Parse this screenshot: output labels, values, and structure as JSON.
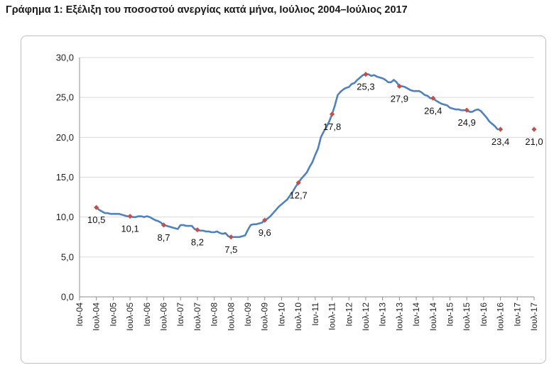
{
  "page": {
    "title": "Γράφημα 1: Εξέλιξη του ποσοστού ανεργίας κατά μήνα, Ιούλιος 2004–Ιούλιος 2017"
  },
  "chart_data": {
    "type": "line",
    "title": "Γράφημα 1: Εξέλιξη του ποσοστού ανεργίας κατά μήνα, Ιούλιος 2004–Ιούλιος 2017",
    "xlabel": "",
    "ylabel": "",
    "ylim": [
      0,
      30
    ],
    "y_ticks": [
      "0,0",
      "5,0",
      "10,0",
      "15,0",
      "20,0",
      "25,0",
      "30,0"
    ],
    "grid": true,
    "legend": "none",
    "colors": {
      "line": "#4f81bd",
      "marker": "#c0504d",
      "grid": "#d9d9d9",
      "axis": "#8c8c8c"
    },
    "x_ticks": [
      "Ιαν-04",
      "Ιουλ-04",
      "Ιαν-05",
      "Ιουλ-05",
      "Ιαν-06",
      "Ιουλ-06",
      "Ιαν-07",
      "Ιουλ-07",
      "Ιαν-08",
      "Ιουλ-08",
      "Ιαν-09",
      "Ιουλ-09",
      "Ιαν-10",
      "Ιουλ-10",
      "Ιαν-11",
      "Ιουλ-11",
      "Ιαν-12",
      "Ιουλ-12",
      "Ιαν-13",
      "Ιουλ-13",
      "Ιαν-14",
      "Ιουλ-14",
      "Ιαν-15",
      "Ιουλ-15",
      "Ιαν-16",
      "Ιουλ-16",
      "Ιαν-17",
      "Ιουλ-17"
    ],
    "series": [
      {
        "values": [
          11.2,
          10.9,
          10.7,
          10.5,
          10.5,
          10.4,
          10.4,
          10.4,
          10.4,
          10.3,
          10.2,
          10.1,
          10.1,
          10.0,
          10.0,
          10.1,
          10.1,
          10.0,
          10.1,
          10.0,
          9.8,
          9.6,
          9.5,
          9.3,
          9.0,
          8.9,
          8.8,
          8.7,
          8.6,
          8.5,
          9.0,
          9.0,
          8.9,
          8.9,
          8.9,
          8.5,
          8.4,
          8.3,
          8.3,
          8.2,
          8.2,
          8.1,
          8.1,
          8.2,
          8.0,
          7.9,
          8.0,
          7.6,
          7.5,
          7.5,
          7.5,
          7.5,
          7.6,
          7.7,
          8.4,
          9.0,
          9.1,
          9.1,
          9.2,
          9.3,
          9.6,
          9.8,
          10.1,
          10.5,
          10.9,
          11.3,
          11.6,
          11.9,
          12.2,
          12.7,
          13.2,
          13.8,
          14.3,
          14.8,
          15.2,
          15.6,
          16.3,
          16.9,
          17.8,
          18.6,
          20.0,
          20.7,
          21.3,
          22.0,
          22.9,
          24.0,
          25.3,
          25.7,
          26.0,
          26.2,
          26.3,
          26.7,
          26.8,
          27.2,
          27.5,
          27.8,
          27.9,
          27.9,
          27.7,
          27.8,
          27.6,
          27.5,
          27.4,
          27.2,
          26.9,
          26.9,
          27.2,
          26.9,
          26.4,
          26.4,
          26.3,
          26.1,
          25.9,
          25.8,
          25.8,
          25.8,
          25.6,
          25.3,
          25.2,
          24.9,
          24.9,
          24.6,
          24.4,
          24.2,
          24.1,
          24.0,
          23.7,
          23.6,
          23.5,
          23.5,
          23.4,
          23.4,
          23.4,
          23.2,
          23.2,
          23.4,
          23.5,
          23.3,
          22.9,
          22.5,
          22.0,
          21.7,
          21.4,
          21.0
        ]
      }
    ],
    "start_index_offset": 6,
    "marker_indices": [
      6,
      18,
      30,
      42,
      54,
      66,
      78,
      90,
      102,
      114,
      126,
      138,
      150
    ],
    "data_labels": [
      {
        "i": 6,
        "text": "10,5",
        "dx": 0,
        "dy": 22
      },
      {
        "i": 18,
        "text": "10,1",
        "dx": 0,
        "dy": 22
      },
      {
        "i": 30,
        "text": "8,7",
        "dx": 0,
        "dy": 22
      },
      {
        "i": 42,
        "text": "8,2",
        "dx": 0,
        "dy": 22
      },
      {
        "i": 54,
        "text": "7,5",
        "dx": 0,
        "dy": 22
      },
      {
        "i": 66,
        "text": "9,6",
        "dx": 0,
        "dy": 22
      },
      {
        "i": 78,
        "text": "12,7",
        "dx": 0,
        "dy": 22
      },
      {
        "i": 90,
        "text": "17,8",
        "dx": 0,
        "dy": 22
      },
      {
        "i": 102,
        "text": "25,3",
        "dx": 0,
        "dy": 22
      },
      {
        "i": 114,
        "text": "27,9",
        "dx": 0,
        "dy": 22
      },
      {
        "i": 126,
        "text": "26,4",
        "dx": 0,
        "dy": 22
      },
      {
        "i": 138,
        "text": "24,9",
        "dx": 0,
        "dy": 22
      },
      {
        "i": 150,
        "text": "23,4",
        "dx": 0,
        "dy": 22
      },
      {
        "i": 162,
        "text": "21,0",
        "dx": 0,
        "dy": 22
      }
    ]
  }
}
